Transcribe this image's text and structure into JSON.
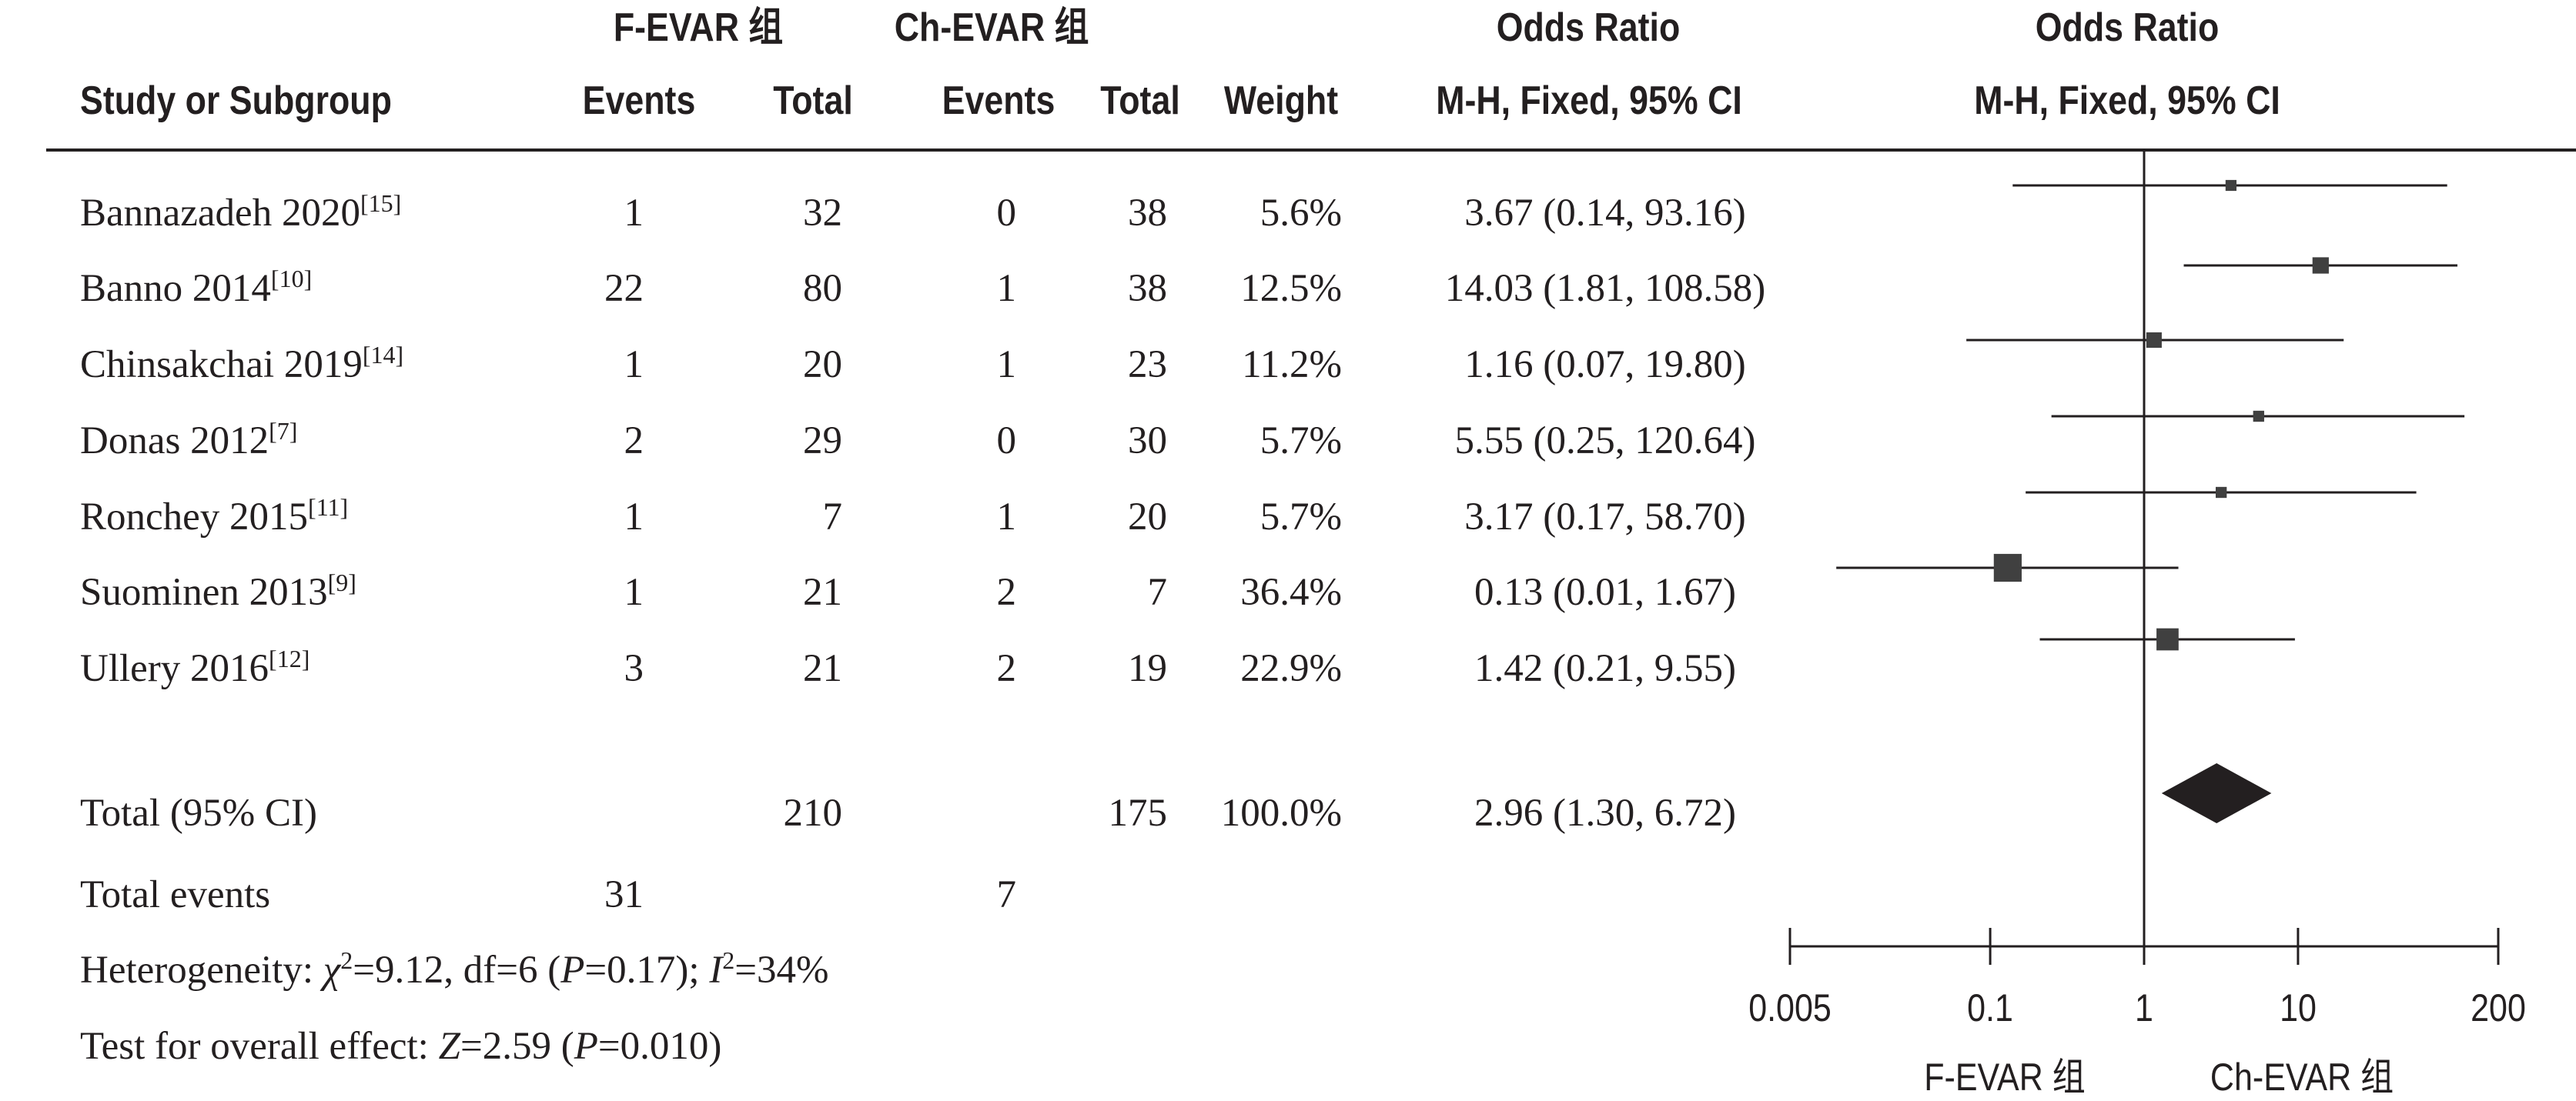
{
  "header": {
    "group1": "F-EVAR 组",
    "group2": "Ch-EVAR 组",
    "or_col_title": "Odds Ratio",
    "or_plot_title": "Odds Ratio",
    "study_col": "Study or Subgroup",
    "events1": "Events",
    "total1": "Total",
    "events2": "Events",
    "total2": "Total",
    "weight": "Weight",
    "or_col_method": "M-H, Fixed, 95% CI",
    "or_plot_method": "M-H, Fixed, 95% CI"
  },
  "studies": [
    {
      "study": "Bannazadeh 2020",
      "ref": "[15]",
      "events1": "1",
      "total1": "32",
      "events2": "0",
      "total2": "38",
      "weight": "5.6%",
      "ci_text": "3.67 (0.14, 93.16)"
    },
    {
      "study": "Banno 2014",
      "ref": "[10]",
      "events1": "22",
      "total1": "80",
      "events2": "1",
      "total2": "38",
      "weight": "12.5%",
      "ci_text": "14.03 (1.81, 108.58)"
    },
    {
      "study": "Chinsakchai 2019",
      "ref": "[14]",
      "events1": "1",
      "total1": "20",
      "events2": "1",
      "total2": "23",
      "weight": "11.2%",
      "ci_text": "1.16 (0.07, 19.80)"
    },
    {
      "study": "Donas 2012",
      "ref": "[7]",
      "events1": "2",
      "total1": "29",
      "events2": "0",
      "total2": "30",
      "weight": "5.7%",
      "ci_text": "5.55 (0.25, 120.64)"
    },
    {
      "study": "Ronchey 2015",
      "ref": "[11]",
      "events1": "1",
      "total1": "7",
      "events2": "1",
      "total2": "20",
      "weight": "5.7%",
      "ci_text": "3.17 (0.17, 58.70)"
    },
    {
      "study": "Suominen 2013",
      "ref": "[9]",
      "events1": "1",
      "total1": "21",
      "events2": "2",
      "total2": "7",
      "weight": "36.4%",
      "ci_text": "0.13 (0.01, 1.67)"
    },
    {
      "study": "Ullery 2016",
      "ref": "[12]",
      "events1": "3",
      "total1": "21",
      "events2": "2",
      "total2": "19",
      "weight": "22.9%",
      "ci_text": "1.42 (0.21, 9.55)"
    }
  ],
  "total": {
    "label": "Total (95% CI)",
    "total1": "210",
    "total2": "175",
    "weight": "100.0%",
    "ci_text": "2.96 (1.30, 6.72)"
  },
  "total_events": {
    "label": "Total events",
    "events1": "31",
    "events2": "7"
  },
  "heterogeneity": {
    "label": "Heterogeneity: ",
    "chi_symbol": "χ",
    "chi_sup": "2",
    "chi_value": "=9.12, df=6 (",
    "p_symbol": "P",
    "p_value": "=0.17); ",
    "i_symbol": "I",
    "i_sup": "2",
    "i_value": "=34%"
  },
  "overall_effect": {
    "label": "Test for overall effect: ",
    "z_symbol": "Z",
    "z_value": "=2.59 (",
    "p_symbol": "P",
    "p_value": "=0.010)"
  },
  "axis": {
    "tick_labels": [
      "0.005",
      "0.1",
      "1",
      "10",
      "200"
    ],
    "favours_left": "F-EVAR 组",
    "favours_right": "Ch-EVAR 组"
  },
  "chart_data": {
    "type": "forest",
    "scale": "log",
    "xlim": [
      0.005,
      200
    ],
    "ticks": [
      0.005,
      0.1,
      1,
      10,
      200
    ],
    "reference_line": 1,
    "studies": [
      {
        "name": "Bannazadeh 2020",
        "or": 3.67,
        "lower": 0.14,
        "upper": 93.16,
        "weight": 5.6
      },
      {
        "name": "Banno 2014",
        "or": 14.03,
        "lower": 1.81,
        "upper": 108.58,
        "weight": 12.5
      },
      {
        "name": "Chinsakchai 2019",
        "or": 1.16,
        "lower": 0.07,
        "upper": 19.8,
        "weight": 11.2
      },
      {
        "name": "Donas 2012",
        "or": 5.55,
        "lower": 0.25,
        "upper": 120.64,
        "weight": 5.7
      },
      {
        "name": "Ronchey 2015",
        "or": 3.17,
        "lower": 0.17,
        "upper": 58.7,
        "weight": 5.7
      },
      {
        "name": "Suominen 2013",
        "or": 0.13,
        "lower": 0.01,
        "upper": 1.67,
        "weight": 36.4
      },
      {
        "name": "Ullery 2016",
        "or": 1.42,
        "lower": 0.21,
        "upper": 9.55,
        "weight": 22.9
      }
    ],
    "pooled": {
      "or": 2.96,
      "lower": 1.3,
      "upper": 6.72
    },
    "mark_color": "#404040",
    "line_color": "#231f20"
  }
}
